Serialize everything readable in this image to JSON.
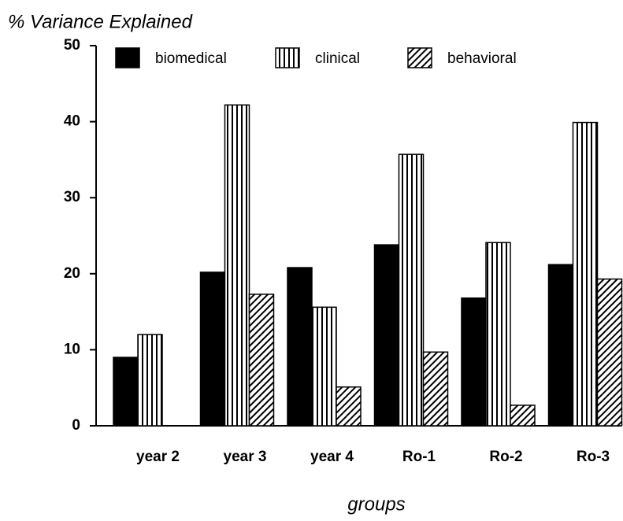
{
  "chart_data": {
    "type": "bar",
    "title": "% Variance Explained",
    "x_label": "groups",
    "categories": [
      "year 2",
      "year 3",
      "year 4",
      "Ro-1",
      "Ro-2",
      "Ro-3"
    ],
    "series": [
      {
        "name": "biomedical",
        "color": "#000000",
        "pattern": "solid",
        "values": [
          9,
          20.2,
          20.8,
          23.8,
          16.8,
          21.2
        ]
      },
      {
        "name": "clinical",
        "color": "#000000",
        "pattern": "vertical",
        "values": [
          12,
          42.2,
          15.6,
          35.7,
          24.1,
          39.9
        ]
      },
      {
        "name": "behavioral",
        "color": "#000000",
        "pattern": "diagonal",
        "values": [
          null,
          17.3,
          5.1,
          9.7,
          2.7,
          19.3
        ]
      }
    ],
    "ylim": [
      0,
      50
    ],
    "yticks": [
      0,
      10,
      20,
      30,
      40,
      50
    ],
    "grid": false,
    "legend": "top"
  }
}
